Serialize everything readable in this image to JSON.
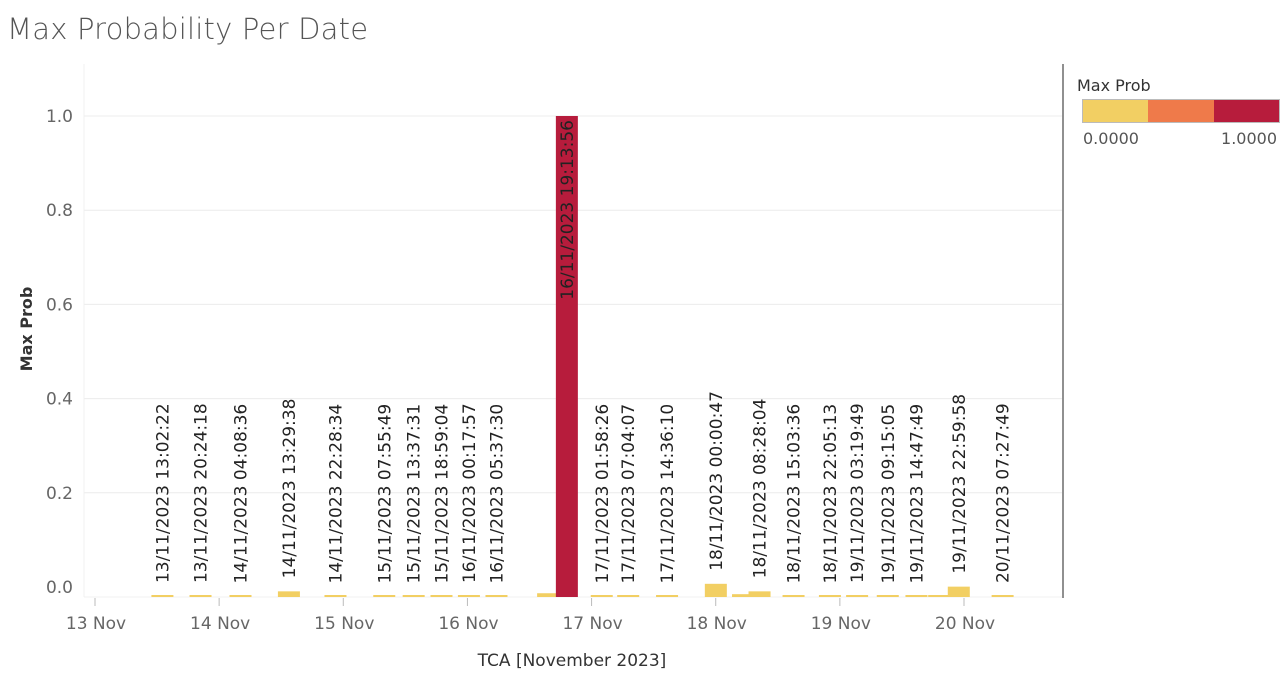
{
  "title": "Max Probability Per Date",
  "legend": {
    "title": "Max Prob",
    "min_label": "0.0000",
    "max_label": "1.0000",
    "colors": [
      "#f2cf63",
      "#ef7a4a",
      "#b71c3c"
    ]
  },
  "chart_data": {
    "type": "bar",
    "title": "Max Probability Per Date",
    "xlabel": "TCA [November 2023]",
    "ylabel": "Max Prob",
    "ylim": [
      0,
      1.1
    ],
    "yticks": [
      0.0,
      0.2,
      0.4,
      0.6,
      0.8,
      1.0
    ],
    "ytick_labels": [
      "0.0",
      "0.2",
      "0.4",
      "0.6",
      "0.8",
      "1.0"
    ],
    "xticks": [
      13,
      14,
      15,
      16,
      17,
      18,
      19,
      20
    ],
    "xtick_labels": [
      "13 Nov",
      "14 Nov",
      "15 Nov",
      "16 Nov",
      "17 Nov",
      "18 Nov",
      "19 Nov",
      "20 Nov"
    ],
    "grid": true,
    "legend_position": "right",
    "points": [
      {
        "label": "13/11/2023 13:02:22",
        "x": 13.543,
        "value": 0.002
      },
      {
        "label": "13/11/2023 20:24:18",
        "x": 13.85,
        "value": 0.002
      },
      {
        "label": "14/11/2023 04:08:36",
        "x": 14.172,
        "value": 0.001
      },
      {
        "label": "14/11/2023 13:29:38",
        "x": 14.562,
        "value": 0.012
      },
      {
        "label": "14/11/2023 22:28:34",
        "x": 14.937,
        "value": 0.001
      },
      {
        "label": "15/11/2023 07:55:49",
        "x": 15.33,
        "value": 0.001
      },
      {
        "label": "15/11/2023 13:37:31",
        "x": 15.567,
        "value": 0.001
      },
      {
        "label": "15/11/2023 18:59:04",
        "x": 15.791,
        "value": 0.001
      },
      {
        "label": "16/11/2023 00:17:57",
        "x": 16.012,
        "value": 0.002
      },
      {
        "label": "16/11/2023 05:37:30",
        "x": 16.234,
        "value": 0.001
      },
      {
        "label": "",
        "x": 16.65,
        "value": 0.008
      },
      {
        "label": "16/11/2023 19:13:56",
        "x": 16.801,
        "value": 1.0
      },
      {
        "label": "17/11/2023 01:58:26",
        "x": 17.082,
        "value": 0.001
      },
      {
        "label": "17/11/2023 07:04:07",
        "x": 17.295,
        "value": 0.001
      },
      {
        "label": "17/11/2023 14:36:10",
        "x": 17.608,
        "value": 0.001
      },
      {
        "label": "18/11/2023 00:00:47",
        "x": 18.001,
        "value": 0.028
      },
      {
        "label": "",
        "x": 18.22,
        "value": 0.006
      },
      {
        "label": "18/11/2023 08:28:04",
        "x": 18.353,
        "value": 0.012
      },
      {
        "label": "18/11/2023 15:03:36",
        "x": 18.627,
        "value": 0.001
      },
      {
        "label": "18/11/2023 22:05:13",
        "x": 18.92,
        "value": 0.001
      },
      {
        "label": "19/11/2023 03:19:49",
        "x": 19.139,
        "value": 0.002
      },
      {
        "label": "19/11/2023 09:15:05",
        "x": 19.386,
        "value": 0.001
      },
      {
        "label": "19/11/2023 14:47:49",
        "x": 19.617,
        "value": 0.001
      },
      {
        "label": "",
        "x": 19.8,
        "value": 0.002
      },
      {
        "label": "19/11/2023 22:59:58",
        "x": 19.958,
        "value": 0.022
      },
      {
        "label": "20/11/2023 07:27:49",
        "x": 20.311,
        "value": 0.002
      }
    ]
  }
}
